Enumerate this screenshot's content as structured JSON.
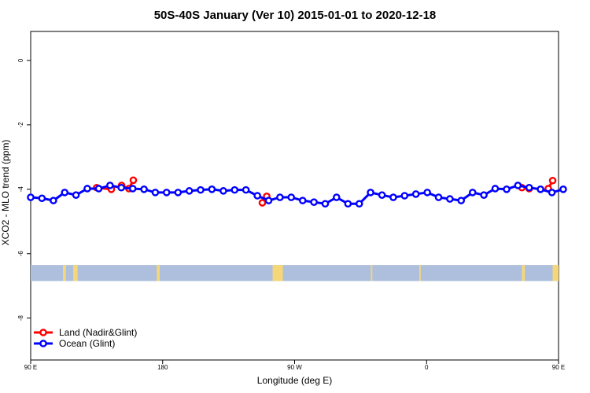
{
  "chart_data": {
    "type": "line",
    "title": "50S-40S January (Ver 10)   2015-01-01 to 2020-12-18",
    "xlabel": "Longitude (deg E)",
    "ylabel": "XCO2 - MLO trend (ppm)",
    "xlim": [
      90,
      450
    ],
    "ylim": [
      -9.3,
      0.9
    ],
    "x_ticks": [
      {
        "value": 90,
        "label": "90 E"
      },
      {
        "value": 180,
        "label": "180"
      },
      {
        "value": 270,
        "label": "90 W"
      },
      {
        "value": 360,
        "label": "0"
      },
      {
        "value": 450,
        "label": "90 E"
      },
      {
        "value": 540,
        "label": "180"
      }
    ],
    "y_ticks": [
      {
        "value": 0,
        "label": "0"
      },
      {
        "value": -2,
        "label": "-2"
      },
      {
        "value": -4,
        "label": "-4"
      },
      {
        "value": -6,
        "label": "-6"
      },
      {
        "value": -8,
        "label": "-8"
      }
    ],
    "series": [
      {
        "name": "Land (Nadir&Glint)",
        "color": "#ff0000",
        "segments": [
          {
            "x": [
              135,
              145
            ],
            "y": [
              -3.95,
              -4.0
            ]
          },
          {
            "x": [
              152,
              157,
              160
            ],
            "y": [
              -3.88,
              -3.98,
              -3.72
            ]
          },
          {
            "x": [
              248,
              251
            ],
            "y": [
              -4.42,
              -4.22
            ]
          },
          {
            "x": [
              425,
              430
            ],
            "y": [
              -3.95,
              -3.98
            ]
          },
          {
            "x": [
              443,
              446
            ],
            "y": [
              -3.98,
              -3.73
            ]
          }
        ]
      },
      {
        "name": "Ocean (Glint)",
        "color": "#0000ff",
        "x": [
          90,
          97.7,
          105.5,
          113.2,
          120.9,
          128.6,
          136.4,
          144.1,
          151.8,
          159.6,
          167.3,
          175,
          182.7,
          190.5,
          198.2,
          205.9,
          213.6,
          221.4,
          229.1,
          236.8,
          244.6,
          252.3,
          260,
          267.7,
          275.5,
          283.2,
          290.9,
          298.6,
          306.4,
          314.1,
          321.8,
          329.6,
          337.3,
          345,
          352.7,
          360.5,
          368.2,
          375.9,
          383.6,
          391.4,
          399.1,
          406.8,
          414.6,
          422.3,
          430,
          437.7,
          445.5,
          453.2
        ],
        "y": [
          -4.25,
          -4.28,
          -4.35,
          -4.1,
          -4.18,
          -3.98,
          -3.98,
          -3.88,
          -3.95,
          -3.98,
          -4.0,
          -4.1,
          -4.1,
          -4.1,
          -4.05,
          -4.02,
          -4.0,
          -4.05,
          -4.02,
          -4.02,
          -4.2,
          -4.35,
          -4.25,
          -4.25,
          -4.35,
          -4.4,
          -4.45,
          -4.25,
          -4.45,
          -4.45,
          -4.1,
          -4.18,
          -4.25,
          -4.2,
          -4.15,
          -4.1,
          -4.25,
          -4.3,
          -4.35,
          -4.1,
          -4.18,
          -3.98,
          -4.0,
          -3.88,
          -3.95,
          -4.0,
          -4.1,
          -4.0
        ]
      }
    ],
    "legend": {
      "position": "bottom-left"
    },
    "grid": false,
    "colors": {
      "land": "#ff0000",
      "ocean": "#0000ff",
      "map_strip": "#aebfdd",
      "continent": "#f5d77a"
    },
    "surface_strip": {
      "y_range": [
        -6.35,
        -6.85
      ],
      "land_x_ranges": [
        [
          112,
          114
        ],
        [
          119,
          122
        ],
        [
          176,
          178
        ],
        [
          255,
          262
        ],
        [
          322,
          323
        ],
        [
          355,
          356
        ],
        [
          425,
          427
        ],
        [
          446,
          450
        ]
      ]
    }
  }
}
